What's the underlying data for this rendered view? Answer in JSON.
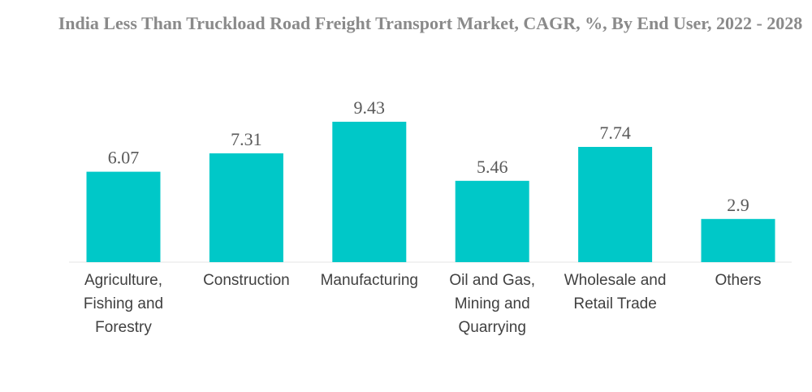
{
  "colors": {
    "bar": "#00c8c8",
    "title": "#8a8a8a",
    "value_label": "#595959",
    "category_label": "#404040"
  },
  "chart_data": {
    "type": "bar",
    "title": "India Less Than Truckload Road Freight Transport Market, CAGR, %, By End User, 2022 - 2028",
    "xlabel": "",
    "ylabel": "",
    "grid": false,
    "legend": "none",
    "ylim": [
      0,
      10
    ],
    "categories": [
      [
        "Agriculture,",
        "Fishing and",
        "Forestry"
      ],
      [
        "Construction"
      ],
      [
        "Manufacturing"
      ],
      [
        "Oil and Gas,",
        "Mining and",
        "Quarrying"
      ],
      [
        "Wholesale and",
        "Retail Trade"
      ],
      [
        "Others"
      ]
    ],
    "values": [
      6.07,
      7.31,
      9.43,
      5.46,
      7.74,
      2.9
    ],
    "value_labels": [
      "6.07",
      "7.31",
      "9.43",
      "5.46",
      "7.74",
      "2.9"
    ]
  }
}
